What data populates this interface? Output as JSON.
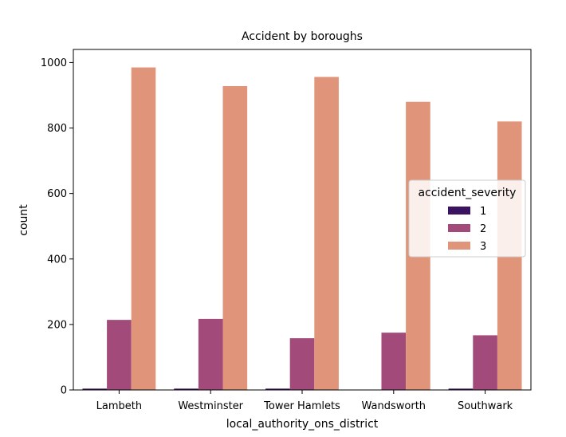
{
  "chart_data": {
    "type": "bar",
    "title": "Accident by boroughs",
    "xlabel": "local_authority_ons_district",
    "ylabel": "count",
    "categories": [
      "Lambeth",
      "Westminster",
      "Tower Hamlets",
      "Wandsworth",
      "Southwark"
    ],
    "series": [
      {
        "name": "1",
        "color": "#3b1260",
        "values": [
          4,
          4,
          4,
          1,
          4
        ]
      },
      {
        "name": "2",
        "color": "#a24a7a",
        "values": [
          214,
          217,
          158,
          175,
          167
        ]
      },
      {
        "name": "3",
        "color": "#e0947a",
        "values": [
          985,
          928,
          956,
          880,
          820
        ]
      }
    ],
    "ylim": [
      0,
      1040
    ],
    "yticks": [
      0,
      200,
      400,
      600,
      800,
      1000
    ],
    "grid": false,
    "legend": {
      "title": "accident_severity",
      "placement": "center-right"
    }
  }
}
